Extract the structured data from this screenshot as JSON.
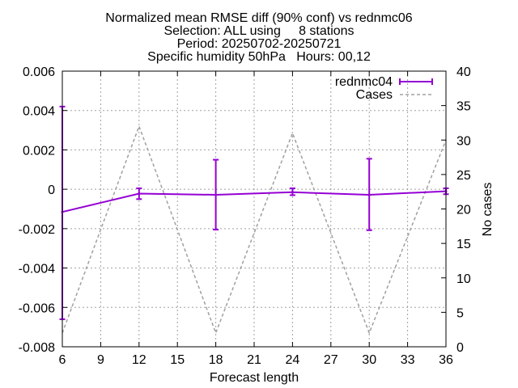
{
  "chart_data": {
    "type": "line",
    "title_lines": [
      "Normalized mean RMSE diff (90% conf) vs rednmc06",
      "Selection: ALL using     8 stations",
      "Period: 20250702-20250721",
      "Specific humidity 50hPa   Hours: 00,12"
    ],
    "xlabel": "Forecast length",
    "ylabel": "",
    "y2label": "No cases",
    "xlim": [
      6,
      36
    ],
    "ylim": [
      -0.008,
      0.006
    ],
    "y2lim": [
      0,
      40
    ],
    "x_ticks": [
      6,
      9,
      12,
      15,
      18,
      21,
      24,
      27,
      30,
      33,
      36
    ],
    "y_ticks": [
      -0.008,
      -0.006,
      -0.004,
      -0.002,
      0,
      0.002,
      0.004,
      0.006
    ],
    "y_tick_labels": [
      "-0.008",
      "-0.006",
      "-0.004",
      "-0.002",
      "0",
      "0.002",
      "0.004",
      "0.006"
    ],
    "y2_ticks": [
      0,
      5,
      10,
      15,
      20,
      25,
      30,
      35,
      40
    ],
    "grid": true,
    "legend_position": "top-right",
    "series": [
      {
        "name": "rednmc04",
        "axis": "y1",
        "style": "errorbars",
        "color": "#9400d3",
        "x": [
          6,
          12,
          18,
          24,
          30,
          36
        ],
        "y": [
          -0.00115,
          -0.00022,
          -0.00028,
          -0.00015,
          -0.00028,
          -0.0001
        ],
        "err_low": [
          -0.0066,
          -0.0005,
          -0.00205,
          -0.0003,
          -0.00208,
          -0.00025
        ],
        "err_high": [
          0.0042,
          5e-05,
          0.0015,
          5e-05,
          0.00155,
          5e-05
        ]
      },
      {
        "name": "Cases",
        "axis": "y2",
        "style": "dashed",
        "color": "#a0a0a0",
        "x": [
          6,
          12,
          18,
          24,
          30,
          36
        ],
        "y": [
          2,
          32,
          2,
          31,
          2,
          30
        ]
      }
    ]
  }
}
